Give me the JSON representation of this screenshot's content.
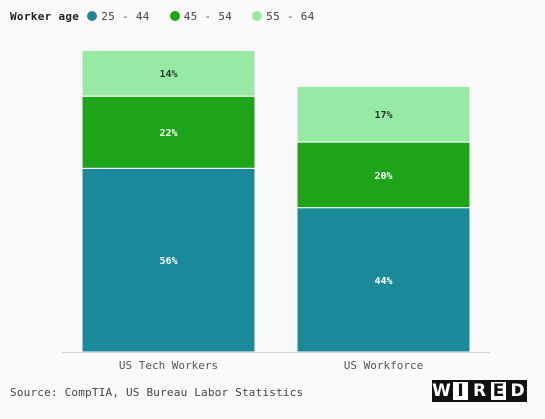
{
  "legend": {
    "title": "Worker age",
    "items": [
      {
        "label": "25 - 44",
        "color": "#1a8a9b"
      },
      {
        "label": "45 - 54",
        "color": "#1ea418"
      },
      {
        "label": "55 - 64",
        "color": "#97e9a3"
      }
    ]
  },
  "chart_data": {
    "type": "bar",
    "stacked": true,
    "categories": [
      "US Tech Workers",
      "US Workforce"
    ],
    "series": [
      {
        "name": "25 - 44",
        "values": [
          56,
          44
        ],
        "labels": [
          "56%",
          "44%"
        ],
        "color": "#1a8a9b"
      },
      {
        "name": "45 - 54",
        "values": [
          22,
          20
        ],
        "labels": [
          "22%",
          "20%"
        ],
        "color": "#1ea418"
      },
      {
        "name": "55 - 64",
        "values": [
          14,
          17
        ],
        "labels": [
          "14%",
          "17%"
        ],
        "color": "#97e9a3"
      }
    ],
    "ylim": [
      0,
      100
    ],
    "grid": false,
    "legend_position": "top-left"
  },
  "source": "Source: CompTIA, US Bureau Labor Statistics",
  "logo": {
    "letters": [
      "W",
      "I",
      "R",
      "E",
      "D"
    ]
  }
}
